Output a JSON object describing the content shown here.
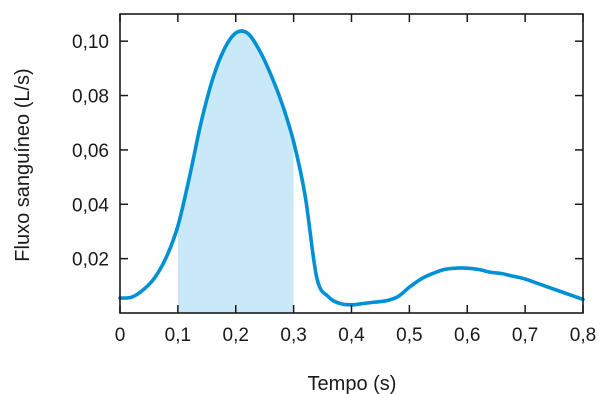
{
  "chart_data": {
    "type": "line",
    "title": "",
    "xlabel": "Tempo (s)",
    "ylabel": "Fluxo sanguíneo (L/s)",
    "xlim": [
      0,
      0.8
    ],
    "ylim": [
      0,
      0.11
    ],
    "grid": false,
    "legend": "none",
    "x_ticks": [
      0,
      0.1,
      0.2,
      0.3,
      0.4,
      0.5,
      0.6,
      0.7,
      0.8
    ],
    "x_tick_labels": [
      "0",
      "0,1",
      "0,2",
      "0,3",
      "0,4",
      "0,5",
      "0,6",
      "0,7",
      "0,8"
    ],
    "y_ticks": [
      0.02,
      0.04,
      0.06,
      0.08,
      0.1
    ],
    "y_tick_labels": [
      "0,02",
      "0,04",
      "0,06",
      "0,08",
      "0,10"
    ],
    "line_color": "#0091d5",
    "fill_color": "#c9e9f8",
    "shaded_range": [
      0.1,
      0.3
    ],
    "series": [
      {
        "x": [
          0,
          0.02,
          0.04,
          0.06,
          0.08,
          0.1,
          0.12,
          0.14,
          0.16,
          0.18,
          0.2,
          0.22,
          0.24,
          0.26,
          0.28,
          0.3,
          0.32,
          0.34,
          0.36,
          0.38,
          0.4,
          0.42,
          0.44,
          0.46,
          0.48,
          0.5,
          0.52,
          0.54,
          0.56,
          0.58,
          0.6,
          0.62,
          0.64,
          0.66,
          0.68,
          0.7,
          0.72,
          0.74,
          0.76,
          0.78,
          0.8
        ],
        "y": [
          0.0055,
          0.0058,
          0.0085,
          0.013,
          0.0205,
          0.032,
          0.05,
          0.07,
          0.086,
          0.097,
          0.103,
          0.103,
          0.097,
          0.088,
          0.077,
          0.063,
          0.043,
          0.013,
          0.006,
          0.0035,
          0.003,
          0.0035,
          0.004,
          0.0045,
          0.006,
          0.0095,
          0.0125,
          0.0145,
          0.016,
          0.0165,
          0.0165,
          0.016,
          0.015,
          0.0145,
          0.0135,
          0.0125,
          0.011,
          0.0095,
          0.008,
          0.0065,
          0.005
        ]
      }
    ]
  }
}
